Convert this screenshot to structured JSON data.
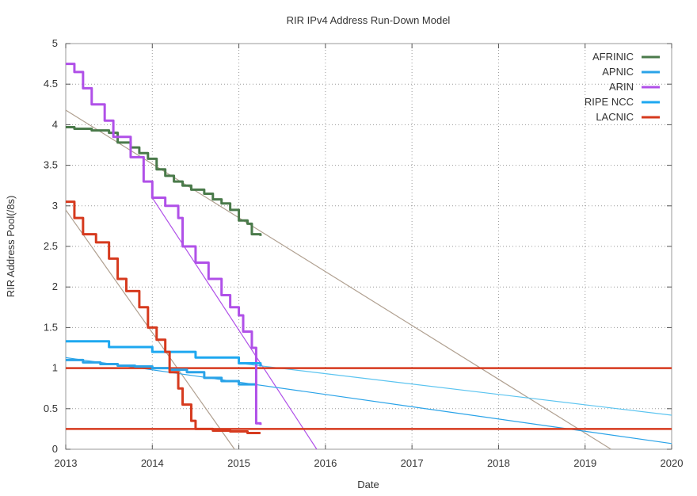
{
  "chart_data": {
    "type": "line",
    "title": "RIR IPv4 Address Run-Down Model",
    "xlabel": "Date",
    "ylabel": "RIR Address Pool(/8s)",
    "xlim": [
      2013,
      2020
    ],
    "ylim": [
      0,
      5
    ],
    "x_ticks": [
      "2013",
      "2014",
      "2015",
      "2016",
      "2017",
      "2018",
      "2019",
      "2020"
    ],
    "y_ticks": [
      "0",
      "0.5",
      "1",
      "1.5",
      "2",
      "2.5",
      "3",
      "3.5",
      "4",
      "4.5",
      "5"
    ],
    "grid": true,
    "legend_position": "top-right",
    "series": [
      {
        "name": "AFRINIC",
        "color": "#4a7a4a",
        "style": "step",
        "points": [
          [
            2013.0,
            3.97
          ],
          [
            2013.1,
            3.95
          ],
          [
            2013.3,
            3.93
          ],
          [
            2013.5,
            3.9
          ],
          [
            2013.6,
            3.78
          ],
          [
            2013.75,
            3.72
          ],
          [
            2013.85,
            3.65
          ],
          [
            2013.95,
            3.58
          ],
          [
            2014.05,
            3.45
          ],
          [
            2014.15,
            3.37
          ],
          [
            2014.25,
            3.3
          ],
          [
            2014.35,
            3.25
          ],
          [
            2014.45,
            3.2
          ],
          [
            2014.6,
            3.15
          ],
          [
            2014.7,
            3.08
          ],
          [
            2014.8,
            3.03
          ],
          [
            2014.9,
            2.95
          ],
          [
            2015.0,
            2.82
          ],
          [
            2015.1,
            2.78
          ],
          [
            2015.15,
            2.65
          ],
          [
            2015.25,
            2.63
          ]
        ]
      },
      {
        "name": "APNIC",
        "color": "#2aa3e8",
        "style": "step",
        "points": [
          [
            2013.0,
            1.1
          ],
          [
            2013.2,
            1.07
          ],
          [
            2013.4,
            1.05
          ],
          [
            2013.6,
            1.03
          ],
          [
            2013.8,
            1.02
          ],
          [
            2014.0,
            1.0
          ],
          [
            2014.2,
            0.98
          ],
          [
            2014.4,
            0.95
          ],
          [
            2014.6,
            0.88
          ],
          [
            2014.8,
            0.84
          ],
          [
            2015.0,
            0.8
          ],
          [
            2015.2,
            0.76
          ]
        ]
      },
      {
        "name": "ARIN",
        "color": "#b050e8",
        "style": "step",
        "points": [
          [
            2013.0,
            4.75
          ],
          [
            2013.1,
            4.65
          ],
          [
            2013.2,
            4.45
          ],
          [
            2013.3,
            4.25
          ],
          [
            2013.45,
            4.05
          ],
          [
            2013.55,
            3.85
          ],
          [
            2013.75,
            3.6
          ],
          [
            2013.9,
            3.3
          ],
          [
            2014.0,
            3.1
          ],
          [
            2014.15,
            3.0
          ],
          [
            2014.3,
            2.85
          ],
          [
            2014.35,
            2.5
          ],
          [
            2014.5,
            2.3
          ],
          [
            2014.65,
            2.1
          ],
          [
            2014.8,
            1.9
          ],
          [
            2014.9,
            1.75
          ],
          [
            2015.0,
            1.65
          ],
          [
            2015.05,
            1.45
          ],
          [
            2015.15,
            1.25
          ],
          [
            2015.2,
            1.0
          ],
          [
            2015.2,
            0.32
          ],
          [
            2015.25,
            0.3
          ]
        ]
      },
      {
        "name": "RIPE NCC",
        "color": "#1ea8f0",
        "style": "step",
        "points": [
          [
            2013.0,
            1.33
          ],
          [
            2013.5,
            1.26
          ],
          [
            2014.0,
            1.2
          ],
          [
            2014.5,
            1.13
          ],
          [
            2015.0,
            1.06
          ],
          [
            2015.25,
            1.02
          ]
        ]
      },
      {
        "name": "LACNIC",
        "color": "#d63a1e",
        "style": "step",
        "points": [
          [
            2013.0,
            3.05
          ],
          [
            2013.1,
            2.85
          ],
          [
            2013.2,
            2.65
          ],
          [
            2013.35,
            2.55
          ],
          [
            2013.5,
            2.35
          ],
          [
            2013.6,
            2.1
          ],
          [
            2013.7,
            1.95
          ],
          [
            2013.85,
            1.75
          ],
          [
            2013.95,
            1.5
          ],
          [
            2014.05,
            1.35
          ],
          [
            2014.15,
            1.2
          ],
          [
            2014.2,
            0.95
          ],
          [
            2014.3,
            0.75
          ],
          [
            2014.35,
            0.55
          ],
          [
            2014.45,
            0.35
          ],
          [
            2014.5,
            0.25
          ],
          [
            2014.7,
            0.23
          ],
          [
            2014.9,
            0.22
          ],
          [
            2015.1,
            0.2
          ],
          [
            2015.25,
            0.2
          ]
        ]
      }
    ],
    "fit_lines": [
      {
        "color": "#b0a090",
        "from": [
          2013.0,
          4.18
        ],
        "to": [
          2019.3,
          0.0
        ]
      },
      {
        "color": "#b0a090",
        "from": [
          2013.0,
          2.95
        ],
        "to": [
          2014.95,
          0.0
        ]
      },
      {
        "color": "#b050e8",
        "from": [
          2014.0,
          3.1
        ],
        "to": [
          2015.9,
          0.0
        ]
      },
      {
        "color": "#2aa3e8",
        "from": [
          2013.0,
          1.13
        ],
        "to": [
          2020.0,
          0.07
        ]
      },
      {
        "color": "#5bc4f0",
        "from": [
          2015.0,
          1.06
        ],
        "to": [
          2020.0,
          0.42
        ]
      }
    ],
    "thresholds": [
      {
        "value": 1.0,
        "color": "#d63a1e"
      },
      {
        "value": 0.25,
        "color": "#d63a1e"
      }
    ]
  }
}
